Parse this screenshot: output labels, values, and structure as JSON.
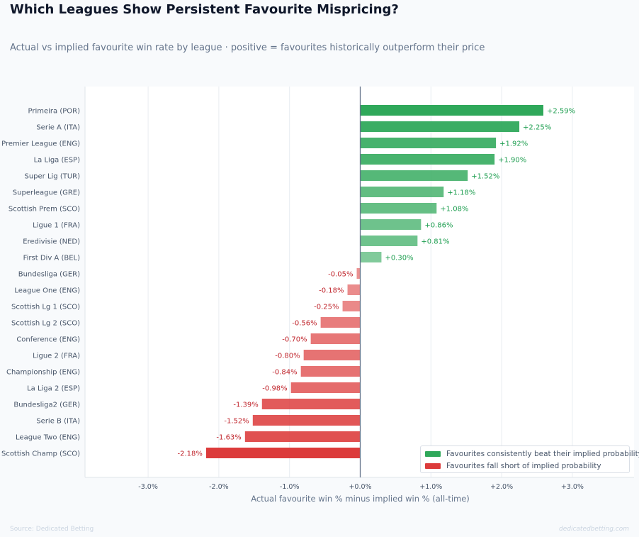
{
  "header": {
    "title": "Which Leagues Show Persistent Favourite Mispricing?",
    "subtitle": "Actual vs implied favourite win rate by league · positive = favourites historically outperform their price"
  },
  "footer": {
    "source": "Source: Dedicated Betting",
    "watermark": "dedicatedbetting.com"
  },
  "colors": {
    "positive": "#2fa85a",
    "negative": "#dc3b3b",
    "positive_label": "#1e9e50",
    "negative_label": "#c0262d",
    "zero_line": "#64748b",
    "grid": "#e8ecf1"
  },
  "chart_data": {
    "type": "bar",
    "orientation": "horizontal",
    "xlabel": "Actual favourite win % minus implied win % (all-time)",
    "ylabel": "",
    "xlim": [
      -3.9,
      3.9
    ],
    "x_ticks": [
      -3.0,
      -2.0,
      -1.0,
      0.0,
      1.0,
      2.0,
      3.0
    ],
    "x_tick_labels": [
      "-3.0%",
      "-2.0%",
      "-1.0%",
      "+0.0%",
      "+1.0%",
      "+2.0%",
      "+3.0%"
    ],
    "grid": "vertical",
    "legend_position": "bottom-right",
    "categories": [
      "Primeira (POR)",
      "Serie A (ITA)",
      "Premier League (ENG)",
      "La Liga (ESP)",
      "Super Lig (TUR)",
      "Superleague (GRE)",
      "Scottish Prem (SCO)",
      "Ligue 1 (FRA)",
      "Eredivisie (NED)",
      "First Div A (BEL)",
      "Bundesliga (GER)",
      "League One (ENG)",
      "Scottish Lg 1 (SCO)",
      "Scottish Lg 2 (SCO)",
      "Conference (ENG)",
      "Ligue 2 (FRA)",
      "Championship (ENG)",
      "La Liga 2 (ESP)",
      "Bundesliga2 (GER)",
      "Serie B (ITA)",
      "League Two (ENG)",
      "Scottish Champ (SCO)"
    ],
    "values": [
      2.59,
      2.25,
      1.92,
      1.9,
      1.52,
      1.18,
      1.08,
      0.86,
      0.81,
      0.3,
      -0.05,
      -0.18,
      -0.25,
      -0.56,
      -0.7,
      -0.8,
      -0.84,
      -0.98,
      -1.39,
      -1.52,
      -1.63,
      -2.18
    ],
    "value_labels": [
      "+2.59%",
      "+2.25%",
      "+1.92%",
      "+1.90%",
      "+1.52%",
      "+1.18%",
      "+1.08%",
      "+0.86%",
      "+0.81%",
      "+0.30%",
      "-0.05%",
      "-0.18%",
      "-0.25%",
      "-0.56%",
      "-0.70%",
      "-0.80%",
      "-0.84%",
      "-0.98%",
      "-1.39%",
      "-1.52%",
      "-1.63%",
      "-2.18%"
    ],
    "legend": [
      "Favourites consistently beat their implied probability",
      "Favourites fall short of implied probability"
    ]
  }
}
